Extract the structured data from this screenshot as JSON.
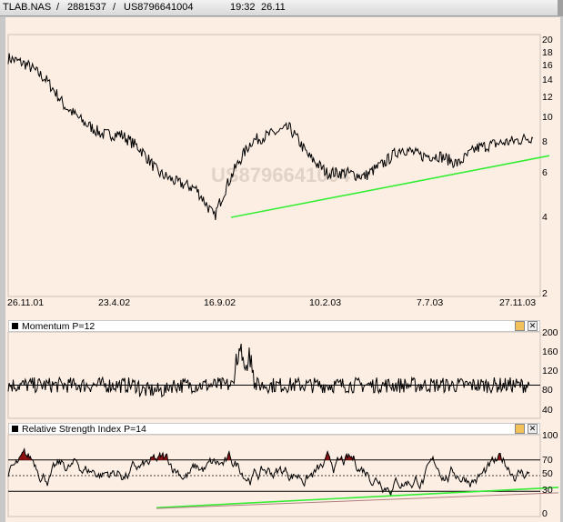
{
  "titlebar": {
    "symbol": "TLAB.NAS",
    "sep1": "/",
    "id": "2881537",
    "sep2": "/",
    "isin": "US8796641004",
    "time": "19:32",
    "price": "26.11"
  },
  "watermark": "US8796641004",
  "price_panel": {
    "y_ticks": [
      "20",
      "18",
      "16",
      "14",
      "12",
      "10",
      "8",
      "6",
      "4",
      "2"
    ],
    "x_ticks": [
      "26.11.01",
      "23.4.02",
      "16.9.02",
      "10.2.03",
      "7.7.03",
      "27.11.03"
    ],
    "scale": "log"
  },
  "momentum_panel": {
    "title": "Momentum P=12",
    "y_ticks": [
      "200",
      "160",
      "120",
      "80",
      "40"
    ],
    "reference_level": 100
  },
  "rsi_panel": {
    "title": "Relative Strength Index P=14",
    "y_ticks": [
      "100",
      "70",
      "50",
      "30",
      "0"
    ],
    "overbought": 70,
    "oversold": 30
  },
  "buttons": {
    "settings_glyph": "",
    "close_glyph": "✕"
  },
  "colors": {
    "background": "#fdeee4",
    "trendline": "#33ee33",
    "rsi_oversold_fill": "#1a7a1a",
    "rsi_overbought_fill": "#8b1010",
    "rsi_second_trendline": "#b08080"
  },
  "chart_data": [
    {
      "type": "line",
      "series": [
        {
          "values": [
            17.0,
            16.0,
            14.0,
            11.0,
            9.5,
            8.5,
            8.5,
            7.5,
            6.0,
            5.5,
            5.2,
            4.0,
            6.0,
            8.0,
            8.5,
            9.0,
            7.0,
            6.0,
            6.0,
            5.8,
            6.5,
            7.5,
            7.0,
            7.0,
            6.5,
            7.5,
            7.8,
            8.0,
            8.3
          ]
        }
      ],
      "x_range": [
        "26.11.01",
        "27.11.03"
      ],
      "ylim": [
        2,
        20
      ],
      "trendline": {
        "from": {
          "x": "16.9.02",
          "y": 4.0
        },
        "to": {
          "x": "27.11.03",
          "y": 7.0
        }
      }
    },
    {
      "type": "line",
      "title": "Momentum P=12",
      "ylim": [
        40,
        200
      ],
      "reference": 100
    },
    {
      "type": "line",
      "title": "Relative Strength Index P=14",
      "ylim": [
        0,
        100
      ],
      "levels": [
        70,
        50,
        30
      ]
    }
  ]
}
